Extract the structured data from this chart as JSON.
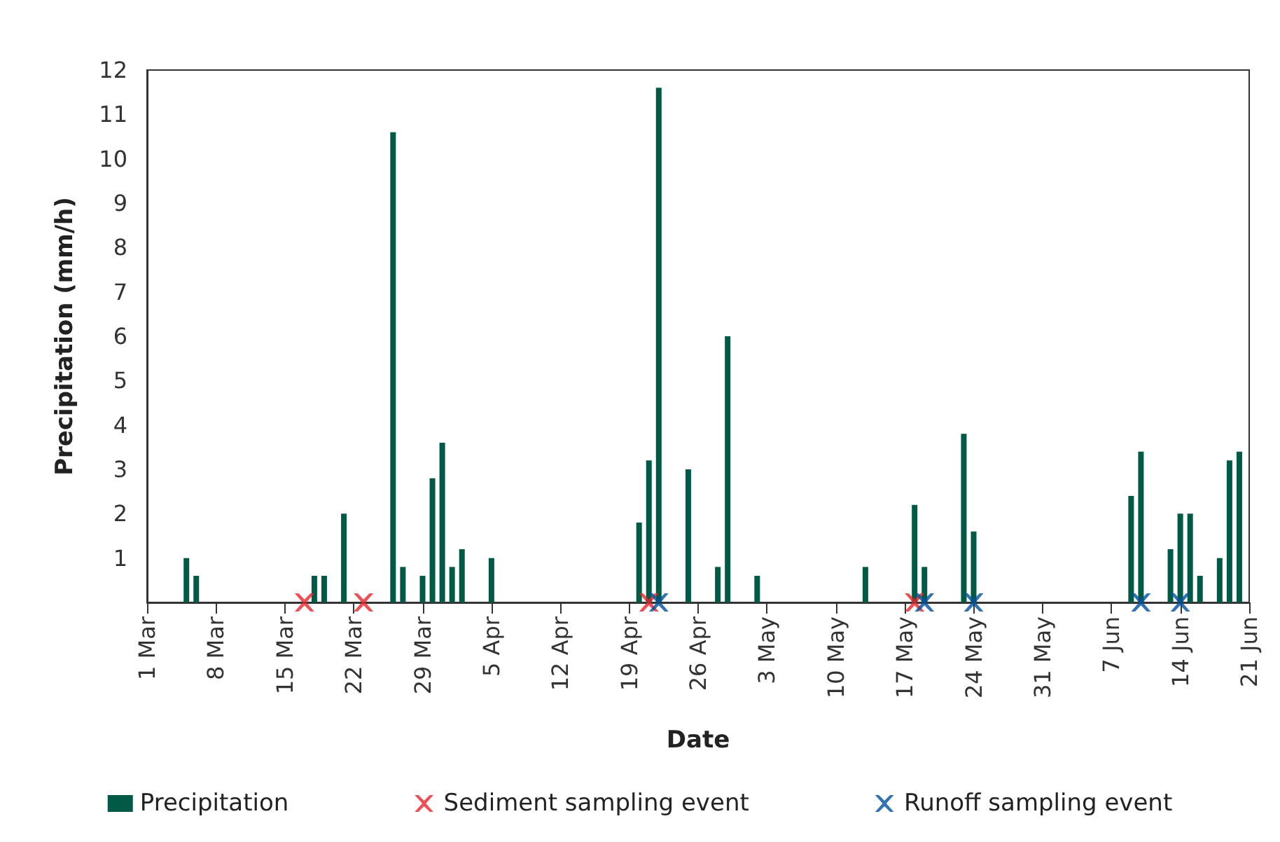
{
  "chart_data": {
    "type": "bar",
    "xlabel": "Date",
    "ylabel": "Precipitation (mm/h)",
    "xlim": [
      "--03-01",
      "--06-21"
    ],
    "xticks": [
      {
        "value": "--03-01",
        "label": "1 Mar"
      },
      {
        "value": "--03-08",
        "label": "8 Mar"
      },
      {
        "value": "--03-15",
        "label": "15 Mar"
      },
      {
        "value": "--03-22",
        "label": "22 Mar"
      },
      {
        "value": "--03-29",
        "label": "29 Mar"
      },
      {
        "value": "--04-05",
        "label": "5 Apr"
      },
      {
        "value": "--04-12",
        "label": "12 Apr"
      },
      {
        "value": "--04-19",
        "label": "19 Apr"
      },
      {
        "value": "--04-26",
        "label": "26 Apr"
      },
      {
        "value": "--05-03",
        "label": "3 May"
      },
      {
        "value": "--05-10",
        "label": "10 May"
      },
      {
        "value": "--05-17",
        "label": "17 May"
      },
      {
        "value": "--05-24",
        "label": "24 May"
      },
      {
        "value": "--05-31",
        "label": "31 May"
      },
      {
        "value": "--06-07",
        "label": "7 Jun"
      },
      {
        "value": "--06-14",
        "label": "14 Jun"
      },
      {
        "value": "--06-21",
        "label": "21 Jun"
      }
    ],
    "ylim": [
      0,
      12
    ],
    "yticks": [
      1,
      2,
      3,
      4,
      5,
      6,
      7,
      8,
      9,
      10,
      11,
      12
    ],
    "grid": false,
    "legend": "bottom",
    "marker": "cross",
    "series": [
      {
        "name": "Precipitation",
        "color": "#005a46",
        "x": [
          "--03-05",
          "--03-06",
          "--03-18",
          "--03-19",
          "--03-21",
          "--03-26",
          "--03-27",
          "--03-29",
          "--03-30",
          "--03-31",
          "--04-01",
          "--04-02",
          "--04-05",
          "--04-20",
          "--04-21",
          "--04-22",
          "--04-25",
          "--04-28",
          "--04-29",
          "--05-02",
          "--05-13",
          "--05-18",
          "--05-19",
          "--05-23",
          "--05-24",
          "--06-09",
          "--06-10",
          "--06-13",
          "--06-14",
          "--06-15",
          "--06-16",
          "--06-18",
          "--06-19",
          "--06-20"
        ],
        "values": [
          1.0,
          0.6,
          0.6,
          0.6,
          2.0,
          10.6,
          0.8,
          0.6,
          2.8,
          3.6,
          0.8,
          1.2,
          1.0,
          1.8,
          3.2,
          11.6,
          3.0,
          0.8,
          6.0,
          0.6,
          0.8,
          2.2,
          0.8,
          3.8,
          1.6,
          2.4,
          3.4,
          1.2,
          2.0,
          2.0,
          0.6,
          1.0,
          3.2,
          3.4
        ]
      },
      {
        "name": "Sediment sampling event",
        "type": "scatter",
        "color": "#e8262a",
        "x": [
          "--03-17",
          "--03-23",
          "--04-21",
          "--05-18"
        ],
        "values": [
          0,
          0,
          0,
          0
        ]
      },
      {
        "name": "Runoff sampling event",
        "type": "scatter",
        "color": "#0050a0",
        "x": [
          "--04-22",
          "--05-19",
          "--05-24",
          "--06-10",
          "--06-14"
        ],
        "values": [
          0,
          0,
          0,
          0,
          0
        ]
      }
    ]
  }
}
